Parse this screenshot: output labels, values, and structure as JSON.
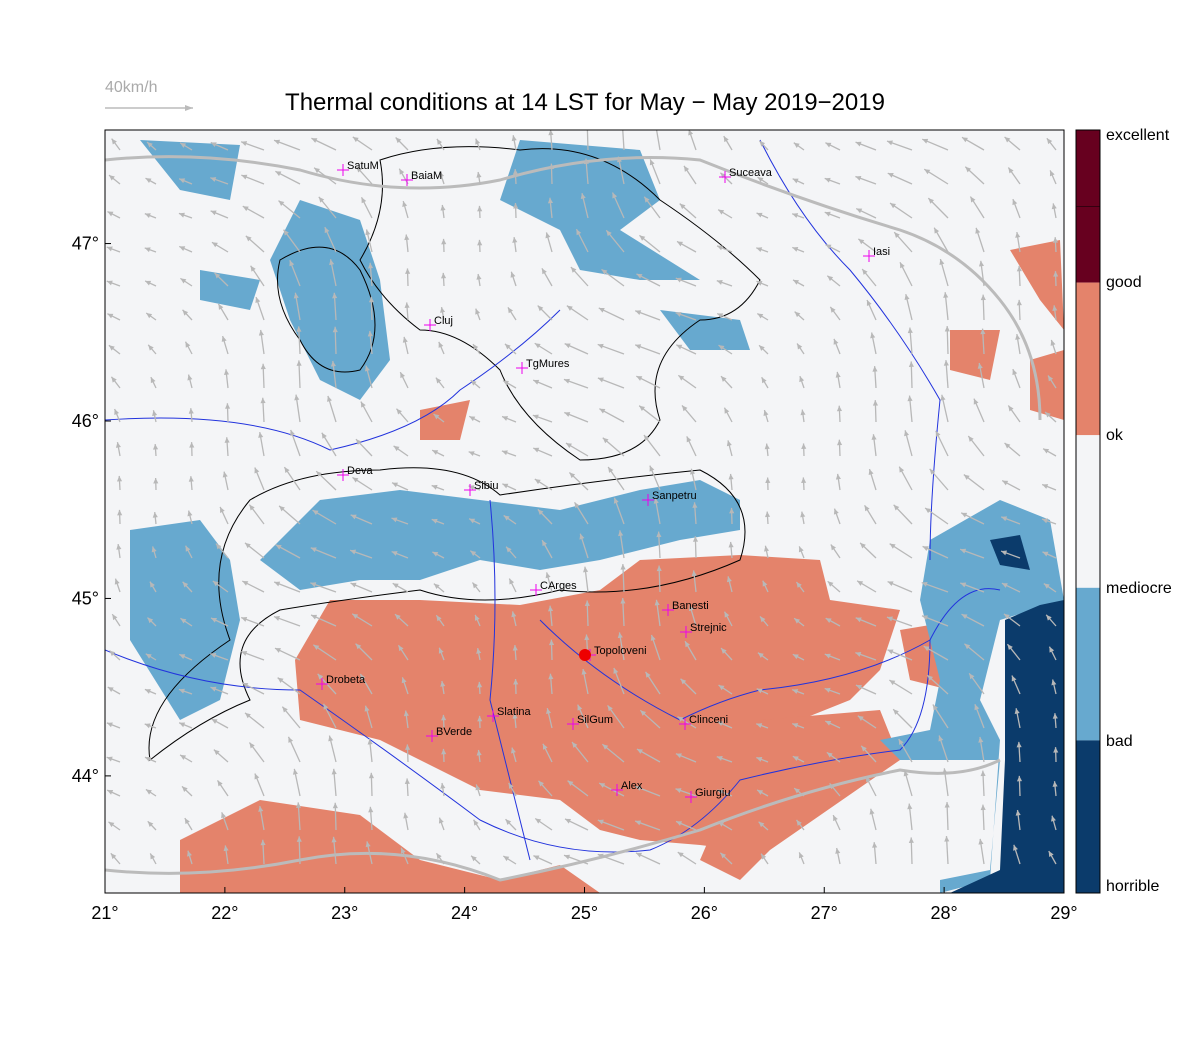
{
  "title": "Thermal conditions at 14 LST for May − May  2019−2019",
  "wind_scale": "40km/h",
  "map": {
    "xlim": [
      21,
      29
    ],
    "ylim": [
      43.34,
      47.64
    ],
    "xticks": [
      {
        "value": 21,
        "label": "21°"
      },
      {
        "value": 22,
        "label": "22°"
      },
      {
        "value": 23,
        "label": "23°"
      },
      {
        "value": 24,
        "label": "24°"
      },
      {
        "value": 25,
        "label": "25°"
      },
      {
        "value": 26,
        "label": "26°"
      },
      {
        "value": 27,
        "label": "27°"
      },
      {
        "value": 28,
        "label": "28°"
      },
      {
        "value": 29,
        "label": "29°"
      }
    ],
    "yticks": [
      {
        "value": 44,
        "label": "44°"
      },
      {
        "value": 45,
        "label": "45°"
      },
      {
        "value": 46,
        "label": "46°"
      },
      {
        "value": 47,
        "label": "47°"
      }
    ]
  },
  "colorbar": {
    "labels": [
      "excellent",
      "good",
      "ok",
      "mediocre",
      "bad",
      "horrible"
    ],
    "colors": [
      "#67001f",
      "#e4836b",
      "#f4f5f7",
      "#67a9cf",
      "#0b3b6b"
    ]
  },
  "cities": [
    "SatuM",
    "BaiaM",
    "Suceava",
    "Iasi",
    "Cluj",
    "TgMures",
    "Deva",
    "Sibiu",
    "Sanpetru",
    "CArges",
    "Banesti",
    "Strejnic",
    "Topoloveni",
    "Drobeta",
    "Slatina",
    "SilGum",
    "Clinceni",
    "BVerde",
    "Alex",
    "Giurgiu"
  ]
}
